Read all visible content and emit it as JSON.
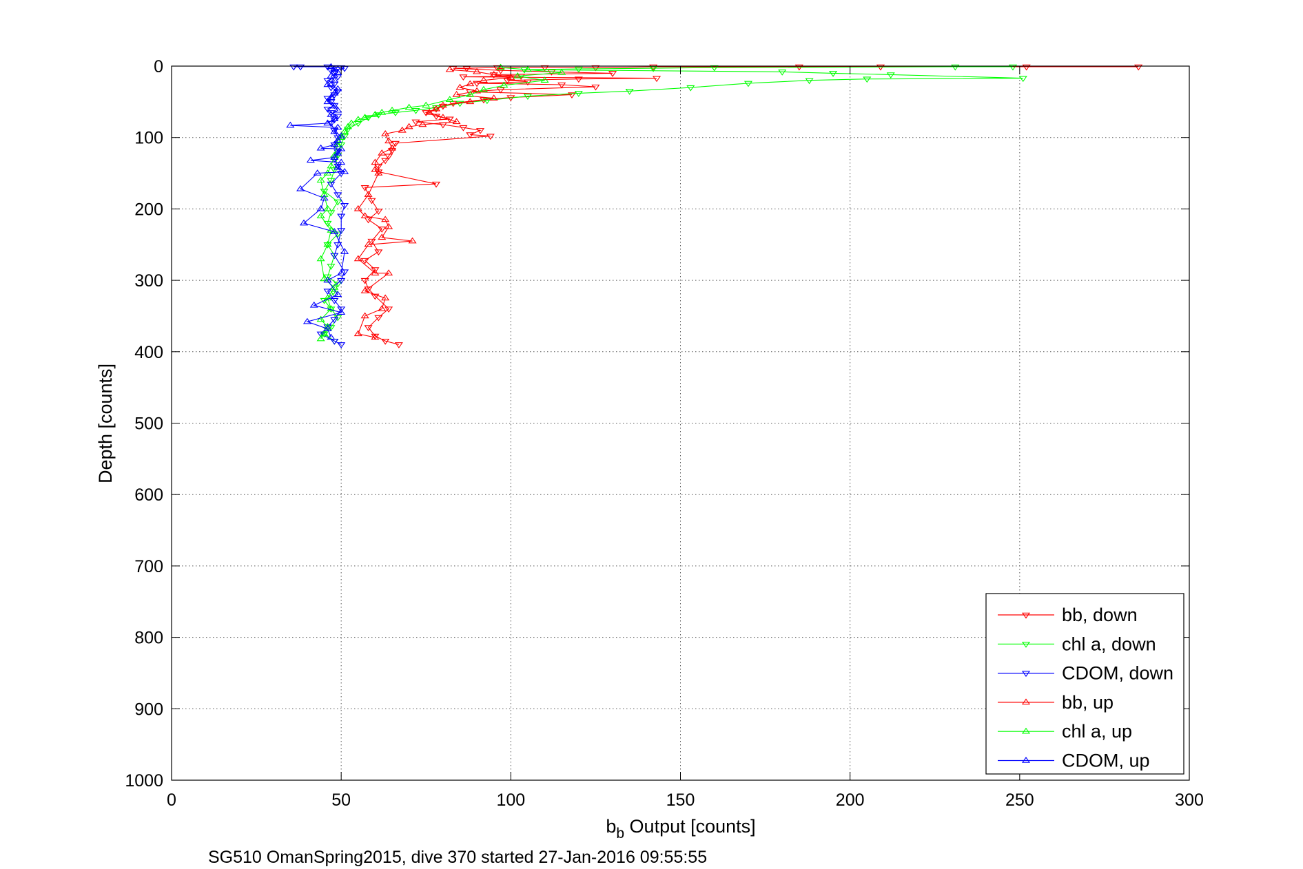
{
  "chart_data": {
    "type": "scatter",
    "title": "",
    "xlabel_base": "b",
    "xlabel_sub": "b",
    "xlabel_rest": " Output [counts]",
    "ylabel": "Depth [counts]",
    "footer": "SG510 OmanSpring2015, dive 370 started 27-Jan-2016 09:55:55",
    "xlim": [
      0,
      300
    ],
    "ylim": [
      0,
      1000
    ],
    "y_reversed": true,
    "grid": true,
    "legend_position": "bottom-right",
    "xticks": [
      0,
      50,
      100,
      150,
      200,
      250,
      300
    ],
    "xtick_labels": [
      "0",
      "50",
      "100",
      "150",
      "200",
      "250",
      "300"
    ],
    "yticks": [
      0,
      100,
      200,
      300,
      400,
      500,
      600,
      700,
      800,
      900,
      1000
    ],
    "ytick_labels": [
      "0",
      "100",
      "200",
      "300",
      "400",
      "500",
      "600",
      "700",
      "800",
      "900",
      "1000"
    ],
    "series": [
      {
        "name": "bb, down",
        "color": "#ff0000",
        "marker": "triangle-down",
        "points": [
          [
            285,
            1
          ],
          [
            252,
            1
          ],
          [
            209,
            1
          ],
          [
            185,
            1
          ],
          [
            142,
            1
          ],
          [
            125,
            2
          ],
          [
            110,
            2
          ],
          [
            96,
            2
          ],
          [
            87,
            3
          ],
          [
            83,
            3
          ],
          [
            97,
            6
          ],
          [
            112,
            8
          ],
          [
            130,
            10
          ],
          [
            95,
            12
          ],
          [
            103,
            14
          ],
          [
            86,
            15
          ],
          [
            143,
            17
          ],
          [
            120,
            18
          ],
          [
            99,
            20
          ],
          [
            105,
            22
          ],
          [
            90,
            24
          ],
          [
            115,
            26
          ],
          [
            125,
            29
          ],
          [
            97,
            33
          ],
          [
            88,
            36
          ],
          [
            118,
            40
          ],
          [
            100,
            44
          ],
          [
            92,
            47
          ],
          [
            83,
            52
          ],
          [
            80,
            56
          ],
          [
            78,
            60
          ],
          [
            75,
            65
          ],
          [
            78,
            70
          ],
          [
            82,
            74
          ],
          [
            72,
            78
          ],
          [
            80,
            82
          ],
          [
            86,
            86
          ],
          [
            91,
            90
          ],
          [
            94,
            98
          ],
          [
            88,
            96
          ],
          [
            78,
            165
          ],
          [
            66,
            108
          ],
          [
            65,
            118
          ],
          [
            64,
            126
          ],
          [
            63,
            132
          ],
          [
            61,
            140
          ],
          [
            61,
            148
          ],
          [
            57,
            170
          ],
          [
            59,
            188
          ],
          [
            61,
            203
          ],
          [
            58,
            215
          ],
          [
            62,
            228
          ],
          [
            59,
            245
          ],
          [
            61,
            260
          ],
          [
            57,
            272
          ],
          [
            60,
            285
          ],
          [
            57,
            300
          ],
          [
            58,
            312
          ],
          [
            60,
            322
          ],
          [
            64,
            340
          ],
          [
            61,
            352
          ],
          [
            58,
            366
          ],
          [
            60,
            378
          ],
          [
            67,
            390
          ],
          [
            63,
            385
          ]
        ]
      },
      {
        "name": "chl a, down",
        "color": "#00ff00",
        "marker": "triangle-down",
        "points": [
          [
            248,
            1
          ],
          [
            231,
            1
          ],
          [
            160,
            2
          ],
          [
            142,
            3
          ],
          [
            120,
            4
          ],
          [
            104,
            5
          ],
          [
            180,
            8
          ],
          [
            195,
            10
          ],
          [
            212,
            12
          ],
          [
            251,
            17
          ],
          [
            205,
            18
          ],
          [
            188,
            20
          ],
          [
            170,
            24
          ],
          [
            153,
            30
          ],
          [
            135,
            35
          ],
          [
            120,
            38
          ],
          [
            105,
            42
          ],
          [
            93,
            48
          ],
          [
            85,
            52
          ],
          [
            78,
            58
          ],
          [
            72,
            62
          ],
          [
            66,
            65
          ],
          [
            61,
            68
          ],
          [
            58,
            72
          ],
          [
            55,
            80
          ],
          [
            52,
            88
          ],
          [
            51,
            98
          ],
          [
            50,
            110
          ],
          [
            49,
            125
          ],
          [
            48,
            145
          ],
          [
            47,
            160
          ],
          [
            45,
            175
          ],
          [
            49,
            190
          ],
          [
            47,
            205
          ],
          [
            46,
            220
          ],
          [
            49,
            235
          ],
          [
            46,
            250
          ],
          [
            48,
            265
          ],
          [
            47,
            280
          ],
          [
            46,
            295
          ],
          [
            49,
            305
          ],
          [
            48,
            318
          ],
          [
            45,
            328
          ],
          [
            47,
            340
          ],
          [
            49,
            352
          ],
          [
            47,
            366
          ],
          [
            45,
            375
          ],
          [
            48,
            385
          ]
        ]
      },
      {
        "name": "CDOM, down",
        "color": "#0000ff",
        "marker": "triangle-down",
        "points": [
          [
            36,
            1
          ],
          [
            38,
            1
          ],
          [
            46,
            1
          ],
          [
            48,
            2
          ],
          [
            50,
            2
          ],
          [
            51,
            3
          ],
          [
            47,
            6
          ],
          [
            48,
            10
          ],
          [
            49,
            15
          ],
          [
            46,
            20
          ],
          [
            48,
            25
          ],
          [
            47,
            30
          ],
          [
            49,
            35
          ],
          [
            48,
            40
          ],
          [
            46,
            45
          ],
          [
            47,
            50
          ],
          [
            48,
            55
          ],
          [
            46,
            60
          ],
          [
            47,
            65
          ],
          [
            49,
            70
          ],
          [
            48,
            75
          ],
          [
            47,
            80
          ],
          [
            48,
            90
          ],
          [
            49,
            100
          ],
          [
            48,
            110
          ],
          [
            49,
            120
          ],
          [
            48,
            130
          ],
          [
            49,
            140
          ],
          [
            50,
            150
          ],
          [
            47,
            165
          ],
          [
            49,
            180
          ],
          [
            51,
            195
          ],
          [
            50,
            210
          ],
          [
            50,
            230
          ],
          [
            49,
            250
          ],
          [
            48,
            265
          ],
          [
            51,
            288
          ],
          [
            50,
            300
          ],
          [
            46,
            315
          ],
          [
            48,
            328
          ],
          [
            50,
            340
          ],
          [
            48,
            355
          ],
          [
            46,
            365
          ],
          [
            44,
            375
          ],
          [
            48,
            385
          ],
          [
            50,
            390
          ]
        ]
      },
      {
        "name": "bb, up",
        "color": "#ff0000",
        "marker": "triangle-up",
        "points": [
          [
            82,
            5
          ],
          [
            90,
            8
          ],
          [
            95,
            12
          ],
          [
            100,
            16
          ],
          [
            92,
            20
          ],
          [
            88,
            25
          ],
          [
            85,
            30
          ],
          [
            90,
            35
          ],
          [
            84,
            40
          ],
          [
            95,
            45
          ],
          [
            88,
            50
          ],
          [
            80,
            55
          ],
          [
            78,
            60
          ],
          [
            76,
            65
          ],
          [
            80,
            72
          ],
          [
            84,
            78
          ],
          [
            74,
            82
          ],
          [
            70,
            85
          ],
          [
            68,
            90
          ],
          [
            63,
            95
          ],
          [
            64,
            105
          ],
          [
            65,
            115
          ],
          [
            62,
            122
          ],
          [
            60,
            135
          ],
          [
            60,
            145
          ],
          [
            61,
            150
          ],
          [
            58,
            180
          ],
          [
            55,
            200
          ],
          [
            57,
            210
          ],
          [
            63,
            215
          ],
          [
            64,
            225
          ],
          [
            62,
            240
          ],
          [
            71,
            245
          ],
          [
            58,
            250
          ],
          [
            55,
            270
          ],
          [
            60,
            290
          ],
          [
            64,
            290
          ],
          [
            57,
            315
          ],
          [
            63,
            325
          ],
          [
            62,
            340
          ],
          [
            57,
            350
          ],
          [
            55,
            375
          ],
          [
            60,
            380
          ]
        ]
      },
      {
        "name": "chl a, up",
        "color": "#00ff00",
        "marker": "triangle-up",
        "points": [
          [
            97,
            2
          ],
          [
            105,
            5
          ],
          [
            115,
            9
          ],
          [
            102,
            14
          ],
          [
            110,
            20
          ],
          [
            98,
            27
          ],
          [
            92,
            33
          ],
          [
            88,
            40
          ],
          [
            82,
            47
          ],
          [
            75,
            55
          ],
          [
            70,
            58
          ],
          [
            65,
            62
          ],
          [
            62,
            65
          ],
          [
            60,
            68
          ],
          [
            57,
            72
          ],
          [
            55,
            75
          ],
          [
            53,
            80
          ],
          [
            52,
            85
          ],
          [
            51,
            92
          ],
          [
            50,
            100
          ],
          [
            49,
            110
          ],
          [
            48,
            125
          ],
          [
            47,
            140
          ],
          [
            46,
            150
          ],
          [
            44,
            160
          ],
          [
            45,
            180
          ],
          [
            46,
            200
          ],
          [
            44,
            210
          ],
          [
            47,
            230
          ],
          [
            46,
            250
          ],
          [
            44,
            270
          ],
          [
            45,
            298
          ],
          [
            48,
            310
          ],
          [
            46,
            325
          ],
          [
            47,
            340
          ],
          [
            44,
            355
          ],
          [
            46,
            365
          ],
          [
            45,
            375
          ],
          [
            44,
            382
          ]
        ]
      },
      {
        "name": "CDOM, up",
        "color": "#0000ff",
        "marker": "triangle-up",
        "points": [
          [
            47,
            1
          ],
          [
            48,
            4
          ],
          [
            49,
            9
          ],
          [
            47,
            14
          ],
          [
            48,
            20
          ],
          [
            46,
            26
          ],
          [
            49,
            32
          ],
          [
            48,
            38
          ],
          [
            47,
            44
          ],
          [
            46,
            50
          ],
          [
            48,
            56
          ],
          [
            49,
            62
          ],
          [
            47,
            68
          ],
          [
            48,
            74
          ],
          [
            46,
            80
          ],
          [
            49,
            86
          ],
          [
            48,
            92
          ],
          [
            50,
            98
          ],
          [
            49,
            104
          ],
          [
            48,
            110
          ],
          [
            50,
            116
          ],
          [
            49,
            122
          ],
          [
            48,
            128
          ],
          [
            50,
            135
          ],
          [
            49,
            142
          ],
          [
            51,
            148
          ],
          [
            35,
            83
          ],
          [
            44,
            115
          ],
          [
            41,
            132
          ],
          [
            43,
            150
          ],
          [
            38,
            172
          ],
          [
            45,
            185
          ],
          [
            44,
            200
          ],
          [
            39,
            220
          ],
          [
            48,
            232
          ],
          [
            51,
            260
          ],
          [
            50,
            290
          ],
          [
            46,
            300
          ],
          [
            49,
            320
          ],
          [
            42,
            335
          ],
          [
            50,
            345
          ],
          [
            40,
            358
          ],
          [
            46,
            368
          ],
          [
            47,
            380
          ]
        ]
      }
    ]
  }
}
